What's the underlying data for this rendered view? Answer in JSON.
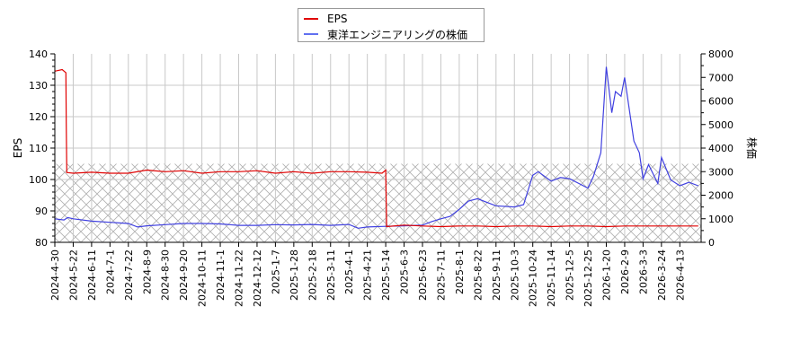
{
  "chart_data": {
    "type": "line",
    "title": "",
    "legend": {
      "position": "top-center",
      "entries": [
        {
          "label": "EPS",
          "color": "#e00000"
        },
        {
          "label": "東洋エンジニアリングの株価",
          "color": "#4040e0"
        }
      ]
    },
    "x_tick_labels": [
      "2024-4-30",
      "2024-5-22",
      "2024-6-11",
      "2024-7-1",
      "2024-7-22",
      "2024-8-9",
      "2024-8-30",
      "2024-9-20",
      "2024-10-11",
      "2024-11-1",
      "2024-11-22",
      "2024-12-12",
      "2025-1-7",
      "2025-1-28",
      "2025-2-18",
      "2025-3-11",
      "2025-4-1",
      "2025-4-21",
      "2025-5-14",
      "2025-6-3",
      "2025-6-23",
      "2025-7-11",
      "2025-8-1",
      "2025-8-22",
      "2025-9-11",
      "2025-10-3",
      "2025-10-24",
      "2025-11-14",
      "2025-12-5",
      "2025-12-25",
      "2026-1-20",
      "2026-2-9",
      "2026-3-3",
      "2026-3-24",
      "2026-4-13"
    ],
    "y_left": {
      "label": "EPS",
      "ticks": [
        80,
        90,
        100,
        110,
        120,
        130,
        140
      ],
      "range": [
        80,
        140
      ]
    },
    "y_right": {
      "label": "株価",
      "ticks": [
        0,
        1000,
        2000,
        3000,
        4000,
        5000,
        6000,
        7000,
        8000
      ],
      "range": [
        0,
        8000
      ]
    },
    "grid": true,
    "shaded_region": {
      "description": "hatched band on EPS axis",
      "from": 80,
      "to": 105
    },
    "series": [
      {
        "name": "EPS",
        "axis": "left",
        "color": "#e00000",
        "x_index": [
          0,
          0.4,
          0.6,
          0.62,
          0.65,
          0.7,
          1,
          2,
          3,
          4,
          5,
          6,
          7,
          8,
          9,
          10,
          11,
          12,
          13,
          14,
          15,
          16,
          17,
          17.8,
          18,
          18.05,
          19,
          20,
          21,
          22,
          23,
          24,
          25,
          26,
          27,
          28,
          29,
          30,
          31,
          32,
          33,
          34,
          35
        ],
        "values": [
          134.5,
          135,
          134,
          118,
          102.2,
          102.2,
          102,
          102.3,
          102,
          102,
          103,
          102.5,
          102.8,
          102,
          102.5,
          102.5,
          102.8,
          102,
          102.5,
          102,
          102.5,
          102.5,
          102.3,
          102,
          103,
          85,
          85.5,
          85.2,
          85,
          85.2,
          85.2,
          85,
          85.2,
          85.2,
          85,
          85.2,
          85.2,
          85,
          85.2,
          85.2,
          85.2,
          85.2,
          85.2
        ]
      },
      {
        "name": "東洋エンジニアリングの株価",
        "axis": "right",
        "color": "#4040e0",
        "x_index": [
          0,
          0.5,
          0.7,
          1,
          2,
          3,
          4,
          4.5,
          5,
          6,
          7,
          8,
          9,
          10,
          11,
          12,
          13,
          14,
          15,
          16,
          16.5,
          17,
          18,
          19,
          20,
          20.5,
          21,
          21.5,
          22,
          22.5,
          23,
          23.5,
          24,
          25,
          25.5,
          26,
          26.3,
          27,
          27.5,
          28,
          29,
          29.3,
          29.7,
          30,
          30.3,
          30.5,
          30.8,
          31,
          31.5,
          31.8,
          32,
          32.3,
          32.8,
          33,
          33.5,
          34,
          34.5,
          35
        ],
        "values": [
          1000,
          950,
          1050,
          1000,
          900,
          850,
          800,
          650,
          700,
          750,
          800,
          800,
          780,
          720,
          720,
          750,
          740,
          760,
          720,
          760,
          600,
          650,
          680,
          700,
          730,
          880,
          1000,
          1100,
          1400,
          1750,
          1850,
          1700,
          1550,
          1500,
          1600,
          2850,
          3000,
          2600,
          2750,
          2700,
          2300,
          2800,
          3800,
          7450,
          5500,
          6400,
          6200,
          7000,
          4300,
          3800,
          2700,
          3300,
          2500,
          3600,
          2650,
          2400,
          2550,
          2400
        ]
      }
    ]
  }
}
